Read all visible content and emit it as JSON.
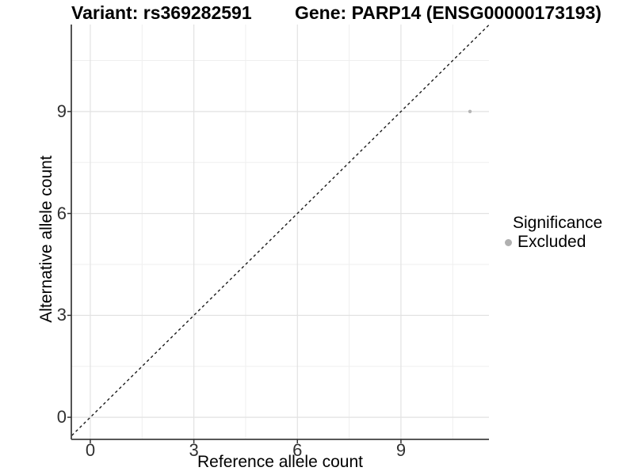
{
  "chart_data": {
    "type": "scatter",
    "title_left": "Variant: rs369282591",
    "title_right": "Gene: PARP14 (ENSG00000173193)",
    "xlabel": "Reference allele count",
    "ylabel": "Alternative allele count",
    "xlim": [
      -0.55,
      11.55
    ],
    "ylim": [
      -0.65,
      11.56
    ],
    "xticks": [
      0,
      3,
      6,
      9
    ],
    "yticks": [
      0,
      3,
      6,
      9
    ],
    "minor_step": 1.5,
    "grid": true,
    "legend_position": "right",
    "identity_line": {
      "present": true,
      "style": "dashed",
      "color": "#1a1a1a"
    },
    "series": [
      {
        "name": "Excluded",
        "color": "#b5b5b5",
        "points": [
          {
            "x": 11,
            "y": 9
          }
        ]
      }
    ],
    "legend": {
      "title": "Significance",
      "items": [
        {
          "label": "Excluded",
          "color": "#b0b0b0"
        }
      ]
    }
  },
  "colors": {
    "background": "#ffffff",
    "grid_major": "#e2e2e2",
    "grid_minor": "#efefef",
    "axis_line": "#404040",
    "tick_mark": "#333333",
    "tick_label": "#303030",
    "title": "#000000"
  }
}
